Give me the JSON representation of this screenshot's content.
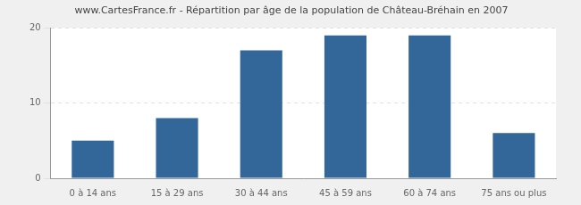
{
  "chart_data": {
    "type": "bar",
    "title": "www.CartesFrance.fr - Répartition par âge de la population de Château-Bréhain en 2007",
    "categories": [
      "0 à 14 ans",
      "15 à 29 ans",
      "30 à 44 ans",
      "45 à 59 ans",
      "60 à 74 ans",
      "75 ans ou plus"
    ],
    "values": [
      5,
      8,
      17,
      19,
      19,
      6
    ],
    "color": "#336699",
    "ylim": [
      0,
      20
    ],
    "yticks": [
      0,
      10,
      20
    ],
    "grid": true
  }
}
